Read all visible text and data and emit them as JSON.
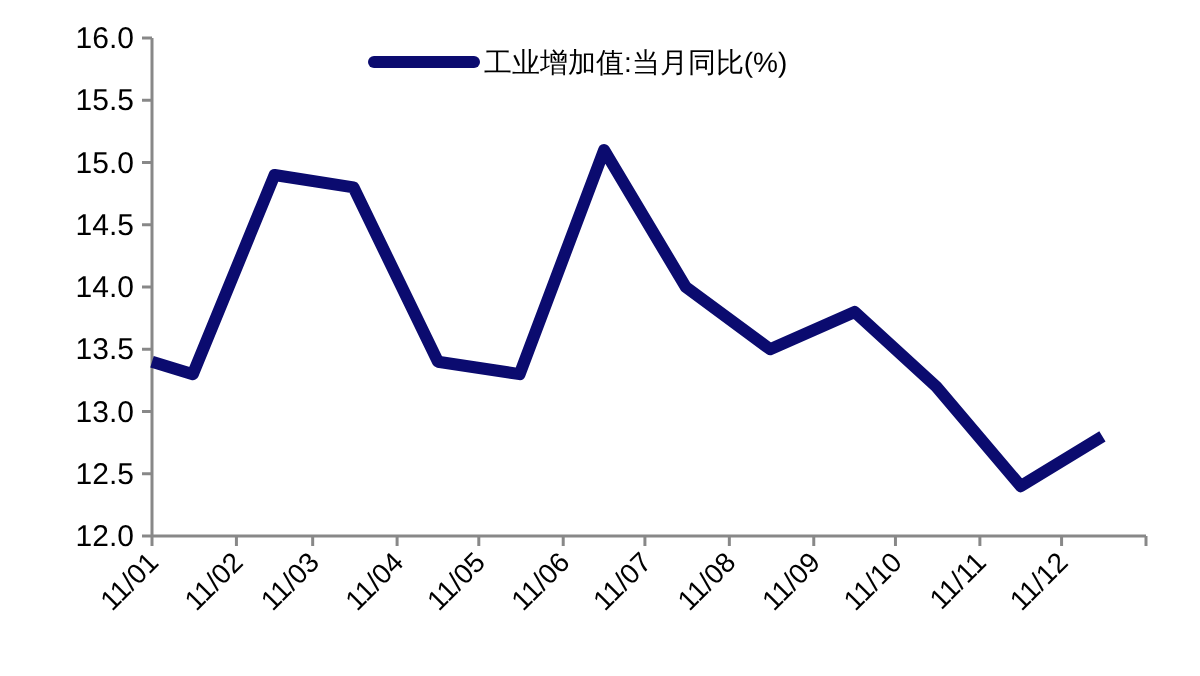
{
  "chart_data": {
    "type": "line",
    "legend": "top",
    "xlim": [
      "2011-01-01",
      "2012-01-01"
    ],
    "xticks": [
      {
        "value": "2011-01-01",
        "label": "11/01"
      },
      {
        "value": "2011-02-01",
        "label": "11/02"
      },
      {
        "value": "2011-03-01",
        "label": "11/03"
      },
      {
        "value": "2011-04-01",
        "label": "11/04"
      },
      {
        "value": "2011-05-01",
        "label": "11/05"
      },
      {
        "value": "2011-06-01",
        "label": "11/06"
      },
      {
        "value": "2011-07-01",
        "label": "11/07"
      },
      {
        "value": "2011-08-01",
        "label": "11/08"
      },
      {
        "value": "2011-09-01",
        "label": "11/09"
      },
      {
        "value": "2011-10-01",
        "label": "11/10"
      },
      {
        "value": "2011-11-01",
        "label": "11/11"
      },
      {
        "value": "2011-12-01",
        "label": "11/12"
      },
      {
        "value": "2012-01-01",
        "label": null
      }
    ],
    "ylim": [
      12,
      16
    ],
    "yticks": [
      {
        "value": 12,
        "label": "12.0"
      },
      {
        "value": 12.5,
        "label": "12.5"
      },
      {
        "value": 13,
        "label": "13.0"
      },
      {
        "value": 13.5,
        "label": "13.5"
      },
      {
        "value": 14,
        "label": "14.0"
      },
      {
        "value": 14.5,
        "label": "14.5"
      },
      {
        "value": 15,
        "label": "15.0"
      },
      {
        "value": 15.5,
        "label": "15.5"
      },
      {
        "value": 16,
        "label": "16.0"
      }
    ],
    "series": [
      {
        "name": "工业增加值:当月同比(%)",
        "color": "#0b0b6f",
        "x": [
          "2011-01-01",
          "2011-01-16",
          "2011-02-15",
          "2011-03-16",
          "2011-04-16",
          "2011-05-16",
          "2011-06-16",
          "2011-07-16",
          "2011-08-16",
          "2011-09-16",
          "2011-10-16",
          "2011-11-16",
          "2011-12-16"
        ],
        "values": [
          13.4,
          13.3,
          14.9,
          14.8,
          13.4,
          13.3,
          15.1,
          14.0,
          13.5,
          13.8,
          13.2,
          12.4,
          12.8
        ]
      }
    ]
  }
}
